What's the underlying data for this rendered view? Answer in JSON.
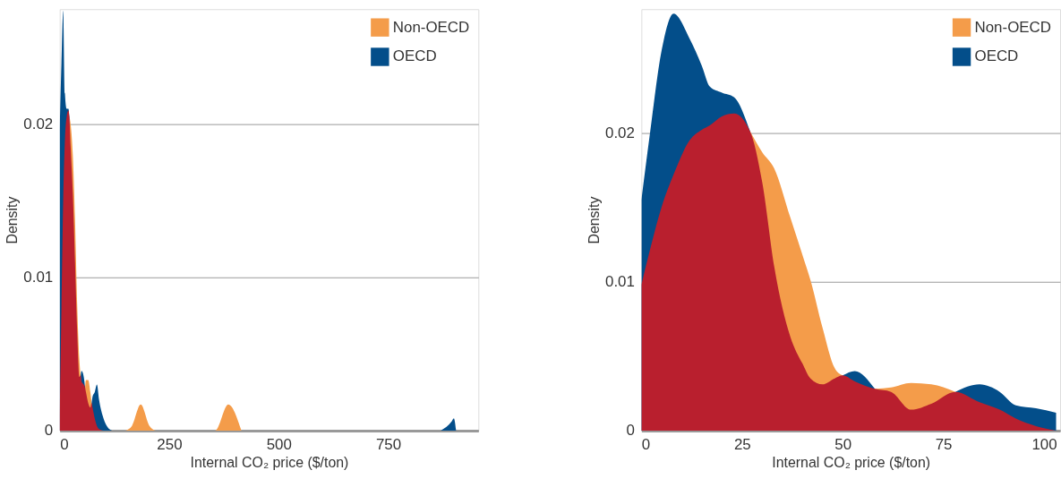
{
  "chart_data": [
    {
      "type": "area",
      "xlabel": "Internal CO₂ price ($/ton)",
      "ylabel": "Density",
      "xlim": [
        0,
        956
      ],
      "ylim": [
        0,
        0.0275
      ],
      "xticks": [
        0,
        250,
        500,
        750
      ],
      "yticks": [
        0,
        0.01,
        0.02
      ],
      "grid": "y",
      "legend": "top right",
      "x": [
        0,
        4,
        8,
        12,
        16,
        20,
        22,
        25,
        30,
        35,
        40,
        45,
        48,
        50,
        55,
        58,
        60,
        65,
        70,
        73,
        75,
        80,
        85,
        90,
        100,
        110,
        120,
        150,
        165,
        185,
        205,
        220,
        355,
        385,
        415,
        870,
        895,
        900,
        905
      ],
      "series": [
        {
          "name": "Non-OECD",
          "color": "#f49c4a",
          "values": [
            null,
            null,
            null,
            null,
            null,
            null,
            0.0205,
            0.02,
            0.018,
            0.0138,
            0.0082,
            0.0046,
            0.0036,
            null,
            null,
            0.0028,
            0.0033,
            0.0033,
            0.0025,
            0.0018,
            null,
            null,
            null,
            null,
            null,
            null,
            null,
            0,
            0.0003,
            0.0017,
            0.0003,
            0,
            0,
            0.0017,
            0,
            null,
            null,
            null,
            null
          ]
        },
        {
          "name": "OECD",
          "color": "#034e8a",
          "values": [
            0.0196,
            0.024,
            0.0274,
            0.022,
            0.021,
            0.021,
            0.0205,
            null,
            null,
            null,
            null,
            null,
            0.0036,
            0.0039,
            0.0035,
            0.0028,
            null,
            null,
            null,
            0.0018,
            0.0022,
            0.0025,
            0.003,
            0.002,
            0.0008,
            0.0002,
            0,
            null,
            null,
            null,
            null,
            null,
            null,
            null,
            null,
            0,
            0.0006,
            0.0008,
            0
          ]
        },
        {
          "color": "#b91f2e",
          "values": [
            0.001,
            0.008,
            0.015,
            0.019,
            0.0205,
            0.0209,
            0.0205,
            0.0185,
            0.0155,
            0.011,
            0.0065,
            0.0035,
            0.0036,
            0.0032,
            0.003,
            0.0028,
            0.0025,
            0.0018,
            0.0015,
            0.0018,
            0.0015,
            0.0008,
            0.0003,
            0.0001,
            0,
            0,
            0,
            null,
            null,
            null,
            null,
            null,
            null,
            null,
            null,
            null,
            null,
            null,
            null
          ]
        }
      ]
    },
    {
      "type": "area",
      "xlabel": "Internal CO₂ price ($/ton)",
      "ylabel": "Density",
      "xlim": [
        0,
        104
      ],
      "ylim": [
        0,
        0.0283
      ],
      "xticks": [
        0,
        25,
        50,
        75,
        100
      ],
      "yticks": [
        0,
        0.01,
        0.02
      ],
      "grid": "y",
      "legend": "top right",
      "x": [
        0,
        2,
        5,
        8,
        12,
        15,
        17,
        20,
        23,
        27,
        30,
        33,
        37,
        40,
        42,
        45,
        48,
        50,
        53,
        58,
        62,
        67,
        72,
        78,
        84,
        89,
        93,
        98,
        103
      ],
      "series": [
        {
          "name": "Non-OECD",
          "color": "#f49c4a",
          "values": [
            null,
            null,
            null,
            null,
            null,
            null,
            null,
            null,
            null,
            0.0201,
            0.0187,
            0.0176,
            0.0143,
            0.0118,
            0.0101,
            0.0069,
            0.0042,
            0.0037,
            null,
            0.0028,
            0.0029,
            0.0032,
            0.0031,
            0.0026,
            null,
            null,
            null,
            null,
            null
          ]
        },
        {
          "name": "OECD",
          "color": "#034e8a",
          "values": [
            0.0155,
            0.0197,
            0.0255,
            0.028,
            0.0263,
            0.0245,
            0.0231,
            0.0227,
            0.0224,
            0.0201,
            null,
            null,
            null,
            null,
            null,
            null,
            null,
            0.0037,
            0.004,
            0.0028,
            null,
            null,
            null,
            0.0026,
            0.0031,
            0.0026,
            0.0017,
            0.0015,
            0.0012
          ]
        },
        {
          "color": "#b91f2e",
          "values": [
            0.0098,
            0.012,
            0.015,
            0.0172,
            0.0195,
            0.0202,
            0.0205,
            0.0211,
            0.0213,
            0.0201,
            0.0167,
            0.011,
            0.0063,
            0.0045,
            0.0035,
            0.0031,
            0.0035,
            0.0037,
            0.0033,
            0.0028,
            0.0026,
            0.0014,
            0.0018,
            0.0026,
            0.0019,
            0.0014,
            0.0008,
            0.0003,
            0
          ]
        }
      ]
    }
  ]
}
